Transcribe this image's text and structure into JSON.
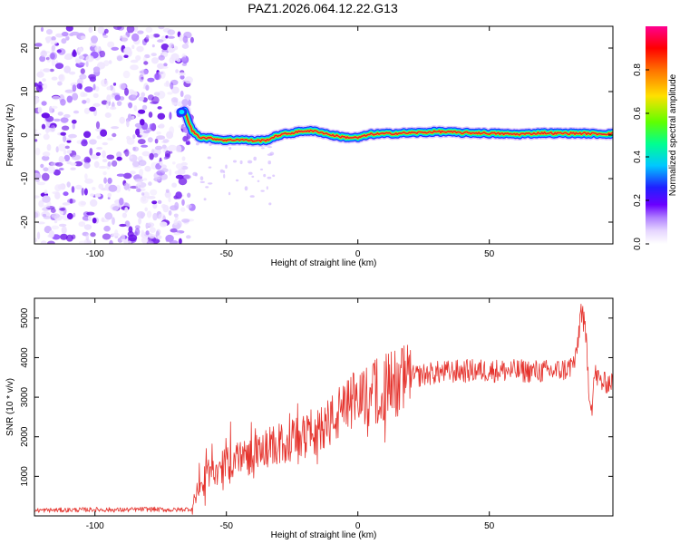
{
  "figure": {
    "title": "PAZ1.2026.064.12.22.G13"
  },
  "colors": {
    "noise": "#7b2bf0",
    "signal_core": "#e8202a",
    "snr_line": "#e5342e",
    "axis": "#000000",
    "colormap": [
      "#ffffff",
      "#e6d6ff",
      "#b080ff",
      "#6a00ff",
      "#2020ff",
      "#00c8ff",
      "#00ff80",
      "#80ff00",
      "#ffe000",
      "#ff6000",
      "#ff0000",
      "#ff00aa"
    ]
  },
  "chart_data": [
    {
      "type": "heatmap",
      "title": "PAZ1.2026.064.12.22.G13",
      "xlabel": "Height of straight line (km)",
      "ylabel": "Frequency (Hz)",
      "xlim": [
        -123,
        97
      ],
      "ylim": [
        -25,
        25
      ],
      "xticks": [
        -100,
        -50,
        0,
        50
      ],
      "yticks": [
        -20,
        -10,
        0,
        10,
        20
      ],
      "noise_region_x": [
        -123,
        -63
      ],
      "signal_track": {
        "x": [
          -66,
          -63,
          -60,
          -55,
          -50,
          -45,
          -40,
          -35,
          -30,
          -25,
          -20,
          -15,
          -10,
          -5,
          0,
          5,
          10,
          15,
          20,
          25,
          30,
          35,
          40,
          45,
          50,
          55,
          60,
          65,
          70,
          75,
          80,
          85,
          90,
          97
        ],
        "y": [
          5.5,
          1.0,
          -0.5,
          -0.8,
          -1.2,
          -1.0,
          -1.3,
          -1.2,
          0.0,
          0.5,
          1.0,
          0.8,
          0.0,
          -0.5,
          -0.6,
          0.2,
          0.3,
          0.4,
          0.5,
          0.6,
          0.8,
          0.7,
          0.5,
          0.5,
          0.4,
          0.3,
          0.2,
          0.3,
          0.5,
          0.4,
          0.4,
          0.4,
          0.3,
          0.3
        ]
      },
      "colorbar": {
        "label": "Normalized spectral amplitude",
        "range": [
          0,
          1
        ],
        "ticks": [
          "0.0",
          "0.2",
          "0.4",
          "0.6",
          "0.8"
        ]
      }
    },
    {
      "type": "line",
      "xlabel": "Height of straight line (km)",
      "ylabel": "SNR (10 * v/v)",
      "xlim": [
        -123,
        97
      ],
      "ylim": [
        0,
        5500
      ],
      "xticks": [
        -100,
        -50,
        0,
        50
      ],
      "yticks": [
        1000,
        2000,
        3000,
        4000,
        5000
      ],
      "series": [
        {
          "name": "SNR",
          "x": [
            -123,
            -110,
            -100,
            -90,
            -80,
            -70,
            -63,
            -60,
            -55,
            -50,
            -45,
            -40,
            -35,
            -30,
            -25,
            -20,
            -15,
            -10,
            -5,
            0,
            5,
            10,
            15,
            20,
            25,
            30,
            35,
            40,
            45,
            50,
            55,
            60,
            65,
            70,
            75,
            80,
            83,
            85,
            87,
            88,
            89,
            90,
            93,
            97
          ],
          "y": [
            140,
            150,
            160,
            150,
            170,
            150,
            180,
            800,
            1100,
            1300,
            1500,
            1500,
            1700,
            1800,
            1900,
            2000,
            2200,
            2400,
            2700,
            2950,
            3100,
            3250,
            3400,
            3500,
            3570,
            3620,
            3640,
            3660,
            3670,
            3670,
            3670,
            3660,
            3660,
            3650,
            3660,
            3720,
            3950,
            5300,
            4300,
            3100,
            2700,
            3600,
            3350,
            3400
          ]
        }
      ]
    }
  ]
}
